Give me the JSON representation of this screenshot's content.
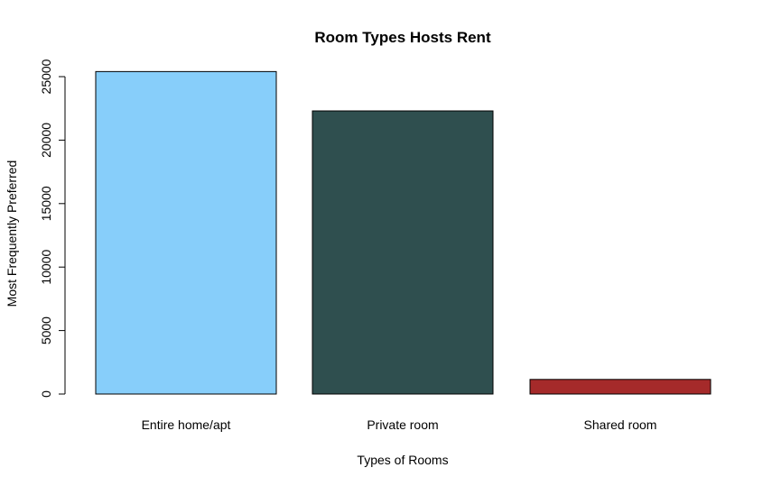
{
  "chart_data": {
    "type": "bar",
    "title": "Room Types Hosts Rent",
    "xlabel": "Types of Rooms",
    "ylabel": "Most Frequently Preferred",
    "categories": [
      "Entire home/apt",
      "Private room",
      "Shared room"
    ],
    "values": [
      25400,
      22300,
      1150
    ],
    "colors": [
      "#87CEFA",
      "#2F4F4F",
      "#A52A2A"
    ],
    "ylim": [
      0,
      25000
    ],
    "yticks": [
      0,
      5000,
      10000,
      15000,
      20000,
      25000
    ],
    "ytick_labels": [
      "0",
      "5000",
      "10000",
      "15000",
      "20000",
      "25000"
    ],
    "grid": false,
    "legend": "none"
  }
}
